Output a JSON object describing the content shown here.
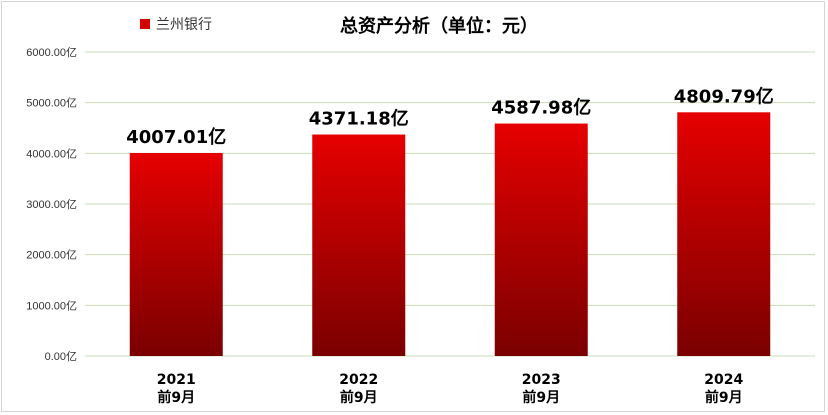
{
  "chart_data": {
    "type": "bar",
    "title": "总资产分析（单位：元）",
    "legend": {
      "label": "兰州银行",
      "position": "top-left",
      "color": "#d40000"
    },
    "categories": [
      [
        "2021",
        "前9月"
      ],
      [
        "2022",
        "前9月"
      ],
      [
        "2023",
        "前9月"
      ],
      [
        "2024",
        "前9月"
      ]
    ],
    "values": [
      4007.01,
      4371.18,
      4587.98,
      4809.79
    ],
    "value_labels": [
      "4007.01亿",
      "4371.18亿",
      "4587.98亿",
      "4809.79亿"
    ],
    "yticks": [
      "0.00亿",
      "1000.00亿",
      "2000.00亿",
      "3000.00亿",
      "4000.00亿",
      "5000.00亿",
      "6000.00亿"
    ],
    "ylim": [
      0,
      6000
    ],
    "grid": true,
    "colors": {
      "bar_top": "#e60000",
      "bar_bottom": "#7a0000",
      "grid": "#c8dcb4"
    }
  }
}
